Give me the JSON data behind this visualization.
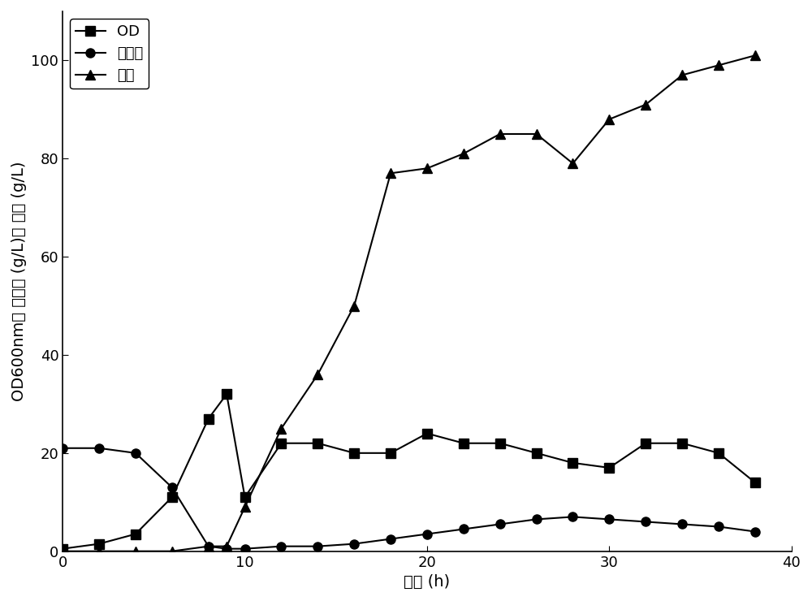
{
  "OD_x": [
    0,
    2,
    4,
    6,
    8,
    9,
    10,
    12,
    14,
    16,
    18,
    20,
    22,
    24,
    26,
    28,
    30,
    32,
    34,
    36,
    38
  ],
  "OD_y": [
    0.5,
    1.5,
    3.5,
    11,
    27,
    32,
    11,
    22,
    22,
    20,
    20,
    24,
    22,
    22,
    20,
    18,
    17,
    22,
    22,
    20,
    14
  ],
  "glucose_x": [
    0,
    2,
    4,
    6,
    8,
    9,
    10,
    12,
    14,
    16,
    18,
    20,
    22,
    24,
    26,
    28,
    30,
    32,
    34,
    36,
    38
  ],
  "glucose_y": [
    21,
    21,
    20,
    13,
    1,
    0.5,
    0.5,
    1,
    1,
    1.5,
    2.5,
    3.5,
    4.5,
    5.5,
    6.5,
    7,
    6.5,
    6,
    5.5,
    5,
    4
  ],
  "pantothenic_x": [
    0,
    2,
    4,
    6,
    8,
    9,
    10,
    12,
    14,
    16,
    18,
    20,
    22,
    24,
    26,
    28,
    30,
    32,
    34,
    36,
    38
  ],
  "pantothenic_y": [
    0,
    0,
    0,
    0,
    1,
    1,
    9,
    25,
    36,
    50,
    77,
    78,
    81,
    85,
    85,
    79,
    88,
    91,
    97,
    99,
    101
  ],
  "xlabel": "时间 (h)",
  "ylabel_part1": "OD",
  "ylabel_sub": "600nm",
  "ylabel_part2": "， 葡萄糖 (g/L)， 泛酸 (g/L)",
  "xlim": [
    0,
    40
  ],
  "ylim": [
    0,
    110
  ],
  "xticks": [
    0,
    10,
    20,
    30,
    40
  ],
  "yticks": [
    0,
    20,
    40,
    60,
    80,
    100
  ],
  "legend_OD": "OD",
  "legend_glucose": "葡萄糖",
  "legend_pantothenic": "泛酸",
  "line_color": "#000000",
  "marker_OD": "s",
  "marker_glucose": "o",
  "marker_pantothenic": "^",
  "markersize": 8,
  "linewidth": 1.5,
  "fontsize_label": 14,
  "fontsize_tick": 13,
  "fontsize_legend": 13,
  "background_color": "#ffffff"
}
